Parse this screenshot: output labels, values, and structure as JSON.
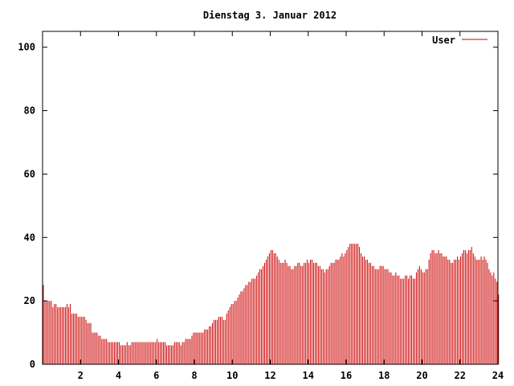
{
  "chart_data": {
    "type": "bar",
    "title": "Dienstag 3. Januar 2012",
    "xlabel": "",
    "ylabel": "",
    "xlim": [
      0,
      24
    ],
    "ylim": [
      0,
      105
    ],
    "xticks": [
      2,
      4,
      6,
      8,
      10,
      12,
      14,
      16,
      18,
      20,
      22,
      24
    ],
    "yticks": [
      0,
      20,
      40,
      60,
      80,
      100
    ],
    "grid": false,
    "legend_position": "top-right",
    "bar_color": "#cc0000",
    "series": [
      {
        "name": "User",
        "interval_hours": 0.0833,
        "values": [
          25,
          20,
          20,
          20,
          20,
          20,
          18,
          19,
          19,
          18,
          18,
          18,
          18,
          18,
          18,
          19,
          18,
          19,
          16,
          16,
          16,
          16,
          15,
          15,
          15,
          15,
          15,
          14,
          13,
          13,
          13,
          10,
          10,
          10,
          10,
          9,
          9,
          8,
          8,
          8,
          8,
          7,
          7,
          7,
          7,
          7,
          7,
          7,
          7,
          6,
          6,
          6,
          6,
          7,
          6,
          6,
          7,
          7,
          7,
          7,
          7,
          7,
          7,
          7,
          7,
          7,
          7,
          7,
          7,
          7,
          7,
          7,
          8,
          7,
          7,
          7,
          7,
          7,
          6,
          6,
          6,
          6,
          6,
          7,
          7,
          7,
          7,
          6,
          7,
          7,
          8,
          8,
          8,
          8,
          9,
          10,
          10,
          10,
          10,
          10,
          10,
          10,
          11,
          11,
          11,
          12,
          12,
          13,
          14,
          14,
          14,
          15,
          15,
          15,
          14,
          14,
          16,
          17,
          18,
          19,
          19,
          20,
          20,
          21,
          22,
          23,
          23,
          24,
          25,
          25,
          26,
          26,
          27,
          27,
          27,
          28,
          29,
          30,
          30,
          31,
          32,
          33,
          34,
          35,
          36,
          36,
          35,
          35,
          34,
          33,
          32,
          32,
          32,
          33,
          32,
          31,
          31,
          30,
          30,
          31,
          31,
          32,
          32,
          31,
          31,
          32,
          32,
          33,
          32,
          33,
          33,
          32,
          32,
          32,
          31,
          31,
          30,
          30,
          29,
          30,
          30,
          31,
          32,
          32,
          32,
          33,
          33,
          33,
          34,
          35,
          34,
          35,
          36,
          37,
          38,
          38,
          38,
          38,
          38,
          38,
          37,
          35,
          34,
          34,
          33,
          33,
          32,
          32,
          31,
          31,
          30,
          30,
          30,
          31,
          31,
          31,
          30,
          30,
          30,
          29,
          29,
          28,
          28,
          29,
          28,
          28,
          27,
          27,
          27,
          28,
          28,
          27,
          28,
          28,
          27,
          27,
          29,
          30,
          31,
          30,
          29,
          29,
          30,
          30,
          33,
          35,
          36,
          36,
          35,
          35,
          36,
          35,
          35,
          34,
          34,
          34,
          33,
          33,
          32,
          32,
          33,
          33,
          34,
          33,
          34,
          35,
          36,
          36,
          35,
          36,
          36,
          37,
          35,
          34,
          33,
          33,
          33,
          34,
          33,
          34,
          33,
          32,
          30,
          29,
          28,
          29,
          27,
          26,
          22
        ]
      }
    ]
  }
}
